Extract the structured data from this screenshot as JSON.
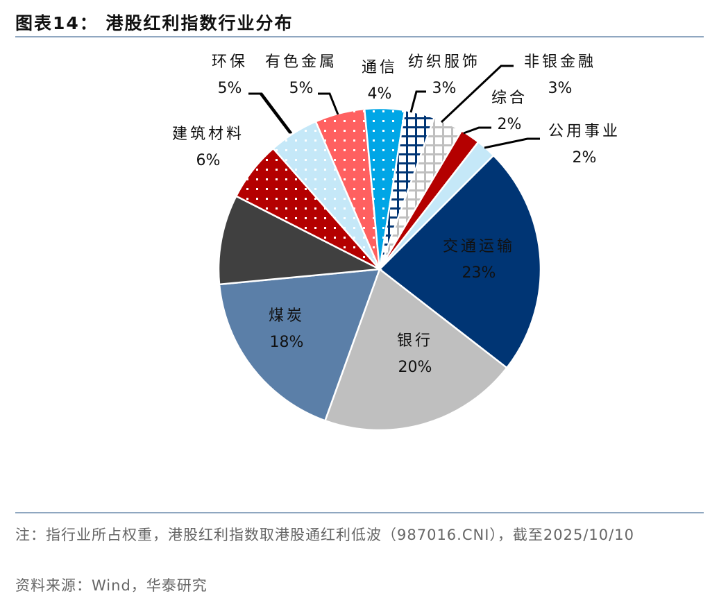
{
  "title": "图表14： 港股红利指数行业分布",
  "note": "注：指行业所占权重，港股红利指数取港股通红利低波（987016.CNI），截至2025/10/10",
  "source": "资料来源：Wind，华泰研究",
  "chart_data": {
    "type": "pie",
    "start_angle_deg": 45,
    "direction": "clockwise",
    "slices": [
      {
        "label": "交通运输",
        "value": 23,
        "display": "23%",
        "color": "#003574",
        "pattern": "solid",
        "label_inside": true
      },
      {
        "label": "银行",
        "value": 20,
        "display": "20%",
        "color": "#bfbfbf",
        "pattern": "solid",
        "label_inside": true
      },
      {
        "label": "煤炭",
        "value": 18,
        "display": "18%",
        "color": "#5b7fa8",
        "pattern": "solid",
        "label_inside": true
      },
      {
        "label": "",
        "value": 9,
        "display": "",
        "color": "#404040",
        "pattern": "solid"
      },
      {
        "label": "建筑材料",
        "value": 6,
        "display": "6%",
        "color": "#b40000",
        "pattern": "dots"
      },
      {
        "label": "环保",
        "value": 5,
        "display": "5%",
        "color": "#c5e8f8",
        "pattern": "dots"
      },
      {
        "label": "有色金属",
        "value": 5,
        "display": "5%",
        "color": "#ff6060",
        "pattern": "dots"
      },
      {
        "label": "通信",
        "value": 4,
        "display": "4%",
        "color": "#00a6e6",
        "pattern": "dots"
      },
      {
        "label": "纺织服饰",
        "value": 3,
        "display": "3%",
        "color": "#003574",
        "pattern": "grid"
      },
      {
        "label": "非银金融",
        "value": 3,
        "display": "3%",
        "color": "#bfbfbf",
        "pattern": "grid"
      },
      {
        "label": "综合",
        "value": 2,
        "display": "2%",
        "color": "#b40000",
        "pattern": "solid"
      },
      {
        "label": "公用事业",
        "value": 2,
        "display": "2%",
        "color": "#c5e8f8",
        "pattern": "solid"
      }
    ]
  }
}
